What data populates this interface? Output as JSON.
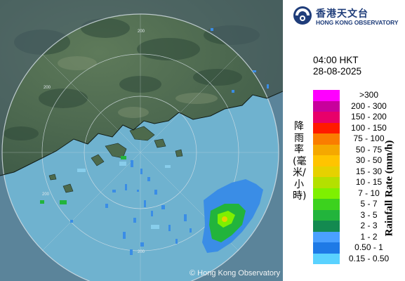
{
  "organization": {
    "name_zh": "香港天文台",
    "name_en": "HONG KONG OBSERVATORY"
  },
  "timestamp": {
    "time": "04:00 HKT",
    "date": "28-08-2025"
  },
  "map": {
    "copyright": "© Hong Kong Observatory",
    "range_ring_labels": [
      "200",
      "200",
      "200",
      "200"
    ]
  },
  "legend": {
    "title_zh": "降雨率(毫米/小時)",
    "title_en": "Rainfall Rate (mm/h)",
    "bins": [
      {
        "label": ">300",
        "color": "#ff00ff"
      },
      {
        "label": "200 - 300",
        "color": "#c8009c"
      },
      {
        "label": "150 - 200",
        "color": "#e8006a"
      },
      {
        "label": "100 - 150",
        "color": "#ff1a00"
      },
      {
        "label": "75 - 100",
        "color": "#fa7d00"
      },
      {
        "label": "50 - 75",
        "color": "#f5a800"
      },
      {
        "label": "30 - 50",
        "color": "#ffc400"
      },
      {
        "label": "15 - 30",
        "color": "#e6d100"
      },
      {
        "label": "10 - 15",
        "color": "#b4e000"
      },
      {
        "label": "7 - 10",
        "color": "#7ef000"
      },
      {
        "label": "5 - 7",
        "color": "#3cd21e"
      },
      {
        "label": "3 - 5",
        "color": "#22b43c"
      },
      {
        "label": "2 - 3",
        "color": "#138a50"
      },
      {
        "label": "1 - 2",
        "color": "#4aa0ff"
      },
      {
        "label": "0.50 - 1",
        "color": "#1e7ae6"
      },
      {
        "label": "0.15 - 0.50",
        "color": "#5ad2ff"
      }
    ]
  }
}
